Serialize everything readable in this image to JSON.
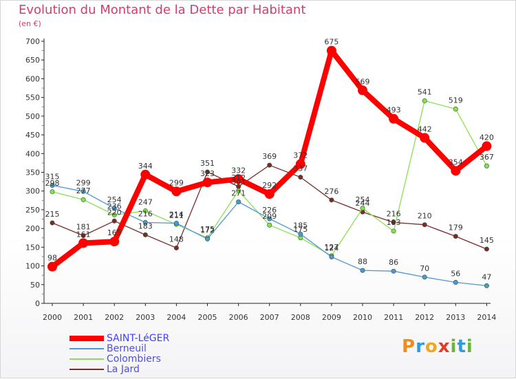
{
  "title": "Evolution du Montant de la Dette par Habitant",
  "subtitle": "(en €)",
  "logo": {
    "letters": [
      "P",
      "r",
      "o",
      "x",
      "i",
      "t",
      "i"
    ],
    "colors": [
      "#f08c1c",
      "#2f9be0",
      "#f0a81c",
      "#e23b2a",
      "#6db33f",
      "#2f9be0",
      "#6db33f"
    ]
  },
  "chart_data": {
    "type": "line",
    "x": [
      "2000",
      "2001",
      "2002",
      "2003",
      "2004",
      "2005",
      "2006",
      "2007",
      "2008",
      "2009",
      "2010",
      "2011",
      "2012",
      "2013",
      "2014"
    ],
    "ylim": [
      0,
      700
    ],
    "yticks": [
      0,
      50,
      100,
      150,
      200,
      250,
      300,
      350,
      400,
      450,
      500,
      550,
      600,
      650,
      700
    ],
    "grid": false,
    "legend_position": "bottom-left",
    "series": [
      {
        "name": "SAINT-LéGER",
        "color": "#ff0000",
        "values": [
          98,
          161,
          165,
          344,
          299,
          323,
          332,
          292,
          372,
          675,
          569,
          493,
          442,
          354,
          420
        ],
        "labels": [
          "98",
          "161",
          "165",
          "344",
          "299",
          "323",
          "332",
          "292",
          "372",
          "675",
          "569",
          "493",
          "442",
          "354",
          "420"
        ]
      },
      {
        "name": "Berneuil",
        "color": "#4f96d6",
        "values": [
          315,
          299,
          254,
          216,
          214,
          172,
          271,
          226,
          185,
          124,
          88,
          86,
          70,
          56,
          47
        ],
        "labels": [
          "315",
          "299",
          "254",
          "216",
          "214",
          "172",
          "271",
          "226",
          "185",
          "124",
          "88",
          "86",
          "70",
          "56",
          "47"
        ]
      },
      {
        "name": "Colombiers",
        "color": "#88e050",
        "values": [
          298,
          277,
          236,
          247,
          211,
          175,
          301,
          209,
          175,
          127,
          254,
          193,
          541,
          519,
          367
        ],
        "labels": [
          "298",
          "277",
          "236",
          "247",
          "211",
          "175",
          "301",
          "209",
          "175",
          "127",
          "254",
          "193",
          "541",
          "519",
          "367"
        ]
      },
      {
        "name": "La Jard",
        "color": "#7c2a2a",
        "values": [
          215,
          181,
          220,
          183,
          148,
          351,
          312,
          369,
          337,
          276,
          244,
          216,
          210,
          179,
          145
        ],
        "labels": [
          "215",
          "181",
          "220",
          "183",
          "148",
          "351",
          "312",
          "369",
          "337",
          "276",
          "244",
          "216",
          "210",
          "179",
          "145"
        ]
      }
    ]
  }
}
